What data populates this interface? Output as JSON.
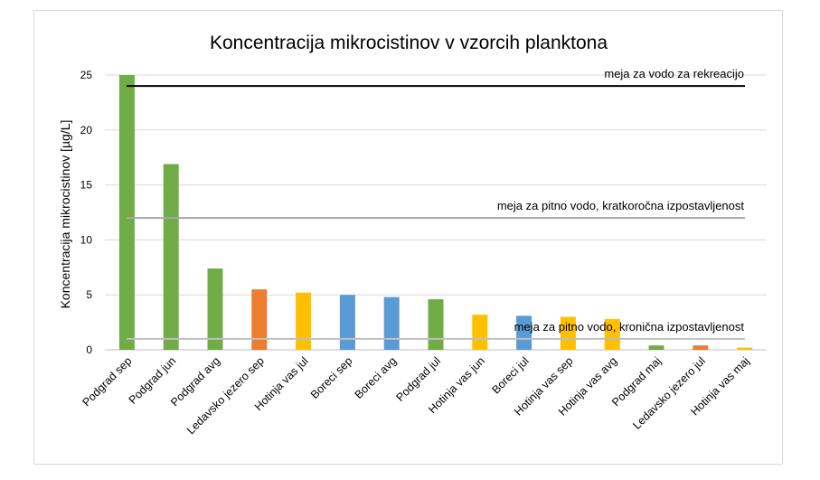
{
  "chart_data": {
    "type": "bar",
    "title": "Koncentracija mikrocistinov v vzorcih planktona",
    "ylabel": "Koncentracija mikrocistinov [µg/L]",
    "xlabel": "",
    "ylim": [
      0,
      25
    ],
    "yticks": [
      0,
      5,
      10,
      15,
      20,
      25
    ],
    "grid": true,
    "categories": [
      "Podgrad sep",
      "Podgrad jun",
      "Podgrad avg",
      "Ledavsko jezero sep",
      "Hotinja vas jul",
      "Boreci sep",
      "Boreci avg",
      "Podgrad jul",
      "Hotinja vas jun",
      "Boreci jul",
      "Hotinja vas sep",
      "Hotinja vas avg",
      "Podgrad maj",
      "Ledavsko jezero jul",
      "Hotinja vas maj"
    ],
    "values": [
      25,
      16.9,
      7.4,
      5.5,
      5.2,
      5.0,
      4.8,
      4.6,
      3.2,
      3.1,
      3.0,
      2.8,
      0.4,
      0.4,
      0.2
    ],
    "bar_colors": [
      "#70ad47",
      "#70ad47",
      "#70ad47",
      "#ed7d31",
      "#ffc000",
      "#5b9bd5",
      "#5b9bd5",
      "#70ad47",
      "#ffc000",
      "#5b9bd5",
      "#ffc000",
      "#ffc000",
      "#70ad47",
      "#ed7d31",
      "#ffc000"
    ],
    "reference_lines": [
      {
        "label": "meja za vodo za rekreacijo",
        "value": 24,
        "color": "#000000"
      },
      {
        "label": "meja za pitno vodo, kratkoročna izpostavljenost",
        "value": 12,
        "color": "#a6a6a6"
      },
      {
        "label": "meja za pitno vodo, kronična izpostavljenost",
        "value": 1,
        "color": "#bfbfbf"
      }
    ]
  }
}
